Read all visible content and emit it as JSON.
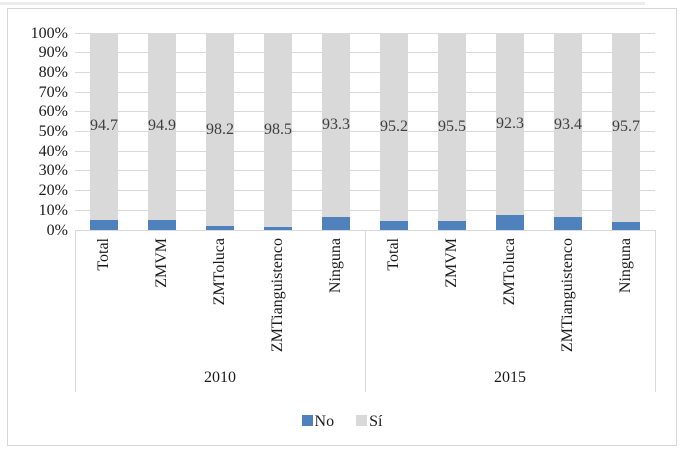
{
  "chart_data": {
    "type": "bar",
    "subtype": "100-percent-stacked-column",
    "title": "",
    "y_axis": {
      "min": 0,
      "max": 100,
      "tick_step": 10,
      "tick_labels": [
        "100%",
        "90%",
        "80%",
        "70%",
        "60%",
        "50%",
        "40%",
        "30%",
        "20%",
        "10%",
        "0%"
      ]
    },
    "categories": [
      "Total",
      "ZMVM",
      "ZMToluca",
      "ZMTianguistenco",
      "Ninguna"
    ],
    "groups": [
      {
        "label": "2010",
        "series": [
          {
            "name": "No",
            "values": [
              5.3,
              5.1,
              1.8,
              1.5,
              6.7
            ]
          },
          {
            "name": "Sí",
            "values": [
              94.7,
              94.9,
              98.2,
              98.5,
              93.3
            ]
          }
        ],
        "data_labels": [
          "94.7",
          "94.9",
          "98.2",
          "98.5",
          "93.3"
        ]
      },
      {
        "label": "2015",
        "series": [
          {
            "name": "No",
            "values": [
              4.8,
              4.5,
              7.7,
              6.6,
              4.3
            ]
          },
          {
            "name": "Sí",
            "values": [
              95.2,
              95.5,
              92.3,
              93.4,
              95.7
            ]
          }
        ],
        "data_labels": [
          "95.2",
          "95.5",
          "92.3",
          "93.4",
          "95.7"
        ]
      }
    ],
    "legend": {
      "position": "bottom",
      "items": [
        {
          "label": "No",
          "color": "#4F81BD"
        },
        {
          "label": "Sí",
          "color": "#D9D9D9"
        }
      ]
    },
    "grid": true,
    "colors": {
      "no_segment": "#4F81BD",
      "si_segment": "#D9D9D9",
      "gridline": "#D9D9D9",
      "frame_border": "#D6D6D6"
    },
    "data_label_series": "Sí"
  }
}
